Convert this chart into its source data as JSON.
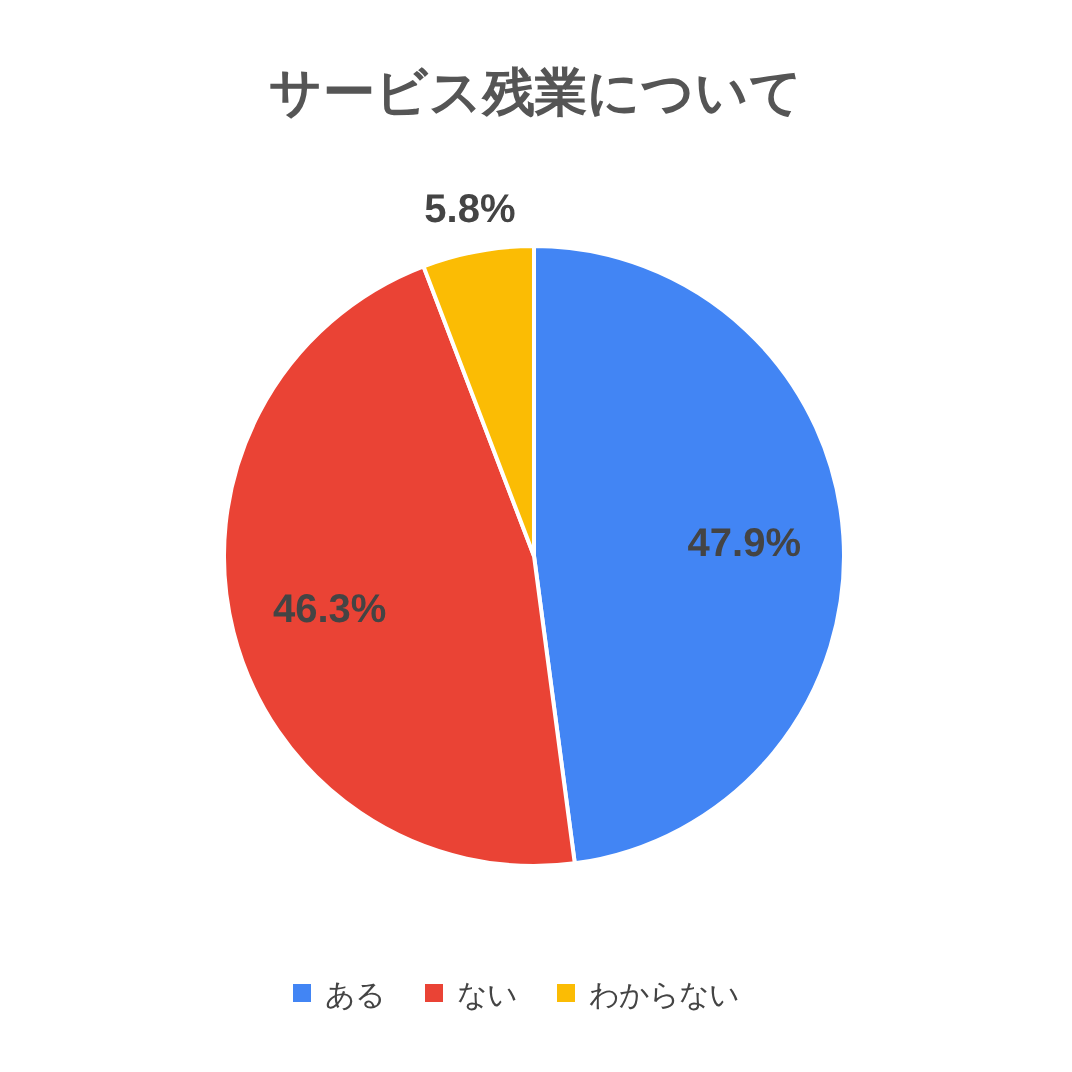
{
  "chart_data": {
    "type": "pie",
    "title": "サービス残業について",
    "categories": [
      "ある",
      "ない",
      "わからない"
    ],
    "values": [
      47.9,
      46.3,
      5.8
    ],
    "colors": [
      "#4285f4",
      "#ea4335",
      "#fbbc04"
    ],
    "value_labels": [
      "47.9%",
      "46.3%",
      "5.8%"
    ],
    "legend": "bottom"
  }
}
